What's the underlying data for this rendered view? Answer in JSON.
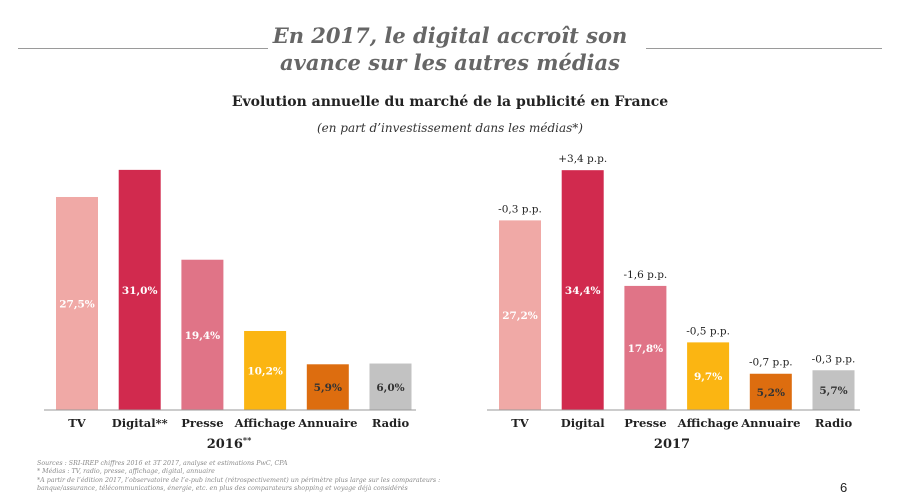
{
  "header": {
    "title_line1": "En 2017, le digital accroît son",
    "title_line2": "avance sur les autres médias",
    "subtitle": "Evolution annuelle du marché de la publicité en France",
    "subnote": "(en part d’investissement dans les médias*)"
  },
  "colors": {
    "TV": "#f0a9a6",
    "Digital": "#d12a4e",
    "Presse": "#e07487",
    "Affichage": "#fbb512",
    "Annuaire": "#dd6d0f",
    "Radio": "#c2c2c2"
  },
  "chart_data": [
    {
      "type": "bar",
      "title": "2016",
      "title_sup": "**",
      "categories": [
        "TV",
        "Digital**",
        "Presse",
        "Affichage",
        "Annuaire",
        "Radio"
      ],
      "values": [
        27.5,
        31.0,
        19.4,
        10.2,
        5.9,
        6.0
      ],
      "value_labels": [
        "27,5%",
        "31,0%",
        "19,4%",
        "10,2%",
        "5,9%",
        "6,0%"
      ],
      "ylim": [
        0,
        31.5
      ]
    },
    {
      "type": "bar",
      "title": "2017",
      "title_sup": "",
      "categories": [
        "TV",
        "Digital",
        "Presse",
        "Affichage",
        "Annuaire",
        "Radio"
      ],
      "values": [
        27.2,
        34.4,
        17.8,
        9.7,
        5.2,
        5.7
      ],
      "value_labels": [
        "27,2%",
        "34,4%",
        "17,8%",
        "9,7%",
        "5,2%",
        "5,7%"
      ],
      "change_labels": [
        "-0,3 p.p.",
        "+3,4 p.p.",
        "-1,6 p.p.",
        "-0,5 p.p.",
        "-0,7 p.p.",
        "-0,3 p.p."
      ],
      "ylim": [
        0,
        35
      ]
    }
  ],
  "footer": {
    "sources": "Sources : SRI-IREP chiffres 2016 et 3T 2017, analyse et estimations PwC, CPA",
    "note1": "* Médias : TV, radio, presse, affichage, digital, annuaire",
    "note2": "*A partir de l’édition 2017, l’observatoire de l’e-pub inclut (rétrospectivement) un périmètre plus large sur les comparateurs :",
    "note3": "banque/assurance, télécommunications, énergie, etc. en plus des comparateurs shopping et voyage déjà considérés",
    "page_number": "6"
  }
}
